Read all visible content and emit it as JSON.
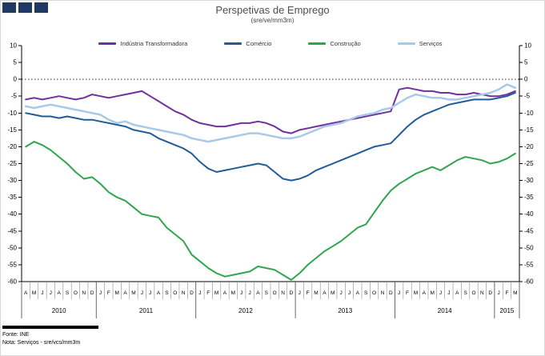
{
  "header": {
    "title": "Perspetivas de Emprego",
    "subtitle": "(sre/ve/mm3m)"
  },
  "footer": {
    "source": "Fonte: INE",
    "note": "Nota: Serviços - sre/vcs/mm3m"
  },
  "logo": {
    "square_color": "#1F3864",
    "square_count": 3
  },
  "chart_data": {
    "type": "line",
    "title": "Perspetivas de Emprego",
    "subtitle": "(sre/ve/mm3m)",
    "legend_position": "top",
    "grid": "off",
    "zero_line": "dotted",
    "ylim": [
      -60,
      10
    ],
    "yticks": [
      10,
      5,
      0,
      -5,
      -10,
      -15,
      -20,
      -25,
      -30,
      -35,
      -40,
      -45,
      -50,
      -55,
      -60
    ],
    "x_labels_months": [
      "A",
      "M",
      "J",
      "J",
      "A",
      "S",
      "O",
      "N",
      "D",
      "J",
      "F",
      "M",
      "A",
      "M",
      "J",
      "J",
      "A",
      "S",
      "O",
      "N",
      "D",
      "J",
      "F",
      "M",
      "A",
      "M",
      "J",
      "J",
      "A",
      "S",
      "O",
      "N",
      "D",
      "J",
      "F",
      "M",
      "A",
      "M",
      "J",
      "J",
      "A",
      "S",
      "O",
      "N",
      "D",
      "J",
      "F",
      "M",
      "A",
      "M",
      "J",
      "J",
      "A",
      "S",
      "O",
      "N",
      "D",
      "J",
      "F",
      "M"
    ],
    "years": [
      {
        "label": "2010",
        "start": 0,
        "count": 9
      },
      {
        "label": "2011",
        "start": 9,
        "count": 12
      },
      {
        "label": "2012",
        "start": 21,
        "count": 12
      },
      {
        "label": "2013",
        "start": 33,
        "count": 12
      },
      {
        "label": "2014",
        "start": 45,
        "count": 12
      },
      {
        "label": "2015",
        "start": 57,
        "count": 3
      }
    ],
    "year_boundaries": [
      0,
      9,
      21,
      33,
      45,
      57,
      60
    ],
    "series": [
      {
        "name": "Indústria Transformadora",
        "color": "#7030A0",
        "line_width": 2,
        "values": [
          -6,
          -5.5,
          -6,
          -5.5,
          -5,
          -5.5,
          -6,
          -5.5,
          -4.5,
          -5,
          -5.5,
          -5,
          -4.5,
          -4,
          -3.5,
          -5,
          -6.5,
          -8,
          -9.5,
          -10.5,
          -12,
          -13,
          -13.5,
          -14,
          -14,
          -13.5,
          -13,
          -13,
          -12.5,
          -13,
          -14,
          -15.5,
          -16,
          -15,
          -14.5,
          -14,
          -13.5,
          -13,
          -12.5,
          -12,
          -11.5,
          -11,
          -10.5,
          -10,
          -9.5,
          -3,
          -2.5,
          -3,
          -3.5,
          -3.5,
          -4,
          -4,
          -4.5,
          -4.5,
          -4,
          -4.5,
          -5,
          -5,
          -4.5,
          -3.5
        ]
      },
      {
        "name": "Comércio",
        "color": "#1F5C99",
        "line_width": 2,
        "values": [
          -10,
          -10.5,
          -11,
          -11,
          -11.5,
          -11,
          -11.5,
          -12,
          -12,
          -12.5,
          -13,
          -13.5,
          -14,
          -15,
          -15.5,
          -16,
          -17.5,
          -18.5,
          -19.5,
          -20.5,
          -22,
          -24.5,
          -26.5,
          -27.5,
          -27,
          -26.5,
          -26,
          -25.5,
          -25,
          -25.5,
          -27.5,
          -29.5,
          -30,
          -29.5,
          -28.5,
          -27,
          -26,
          -25,
          -24,
          -23,
          -22,
          -21,
          -20,
          -19.5,
          -19,
          -16.5,
          -14,
          -12,
          -10.5,
          -9.5,
          -8.5,
          -7.5,
          -7,
          -6.5,
          -6,
          -6,
          -6,
          -5.5,
          -5,
          -4
        ]
      },
      {
        "name": "Construção",
        "color": "#2FA54F",
        "line_width": 2,
        "values": [
          -20,
          -18.5,
          -19.5,
          -21,
          -23,
          -25,
          -27.5,
          -29.5,
          -29,
          -31,
          -33.5,
          -35,
          -36,
          -38,
          -40,
          -40.5,
          -41,
          -44,
          -46,
          -48,
          -52,
          -54,
          -56,
          -57.5,
          -58.5,
          -58,
          -57.5,
          -57,
          -55.5,
          -56,
          -56.5,
          -58,
          -59.5,
          -57.5,
          -55,
          -53,
          -51,
          -49.5,
          -48,
          -46,
          -44,
          -43,
          -39.5,
          -36,
          -33,
          -31,
          -29.5,
          -28,
          -27,
          -26,
          -27,
          -25.5,
          -24,
          -23,
          -23.5,
          -24,
          -25,
          -24.5,
          -23.5,
          -22
        ]
      },
      {
        "name": "Serviços",
        "color": "#A9C9E9",
        "line_width": 2.5,
        "values": [
          -8,
          -8.5,
          -8,
          -7.5,
          -8,
          -8.5,
          -9,
          -9.5,
          -10,
          -10.5,
          -12,
          -13,
          -12.5,
          -13.5,
          -14,
          -14.5,
          -15,
          -15.5,
          -16,
          -16.5,
          -17.5,
          -18,
          -18.5,
          -18,
          -17.5,
          -17,
          -16.5,
          -16,
          -16,
          -16.5,
          -17,
          -17.5,
          -17.5,
          -17,
          -16,
          -15,
          -14,
          -13.5,
          -13,
          -12,
          -11,
          -10.5,
          -10,
          -9,
          -8.5,
          -7,
          -5.5,
          -4.5,
          -5,
          -5.5,
          -5.5,
          -6,
          -6,
          -5.5,
          -5,
          -4.5,
          -4,
          -3,
          -1.5,
          -2.5
        ]
      }
    ]
  }
}
